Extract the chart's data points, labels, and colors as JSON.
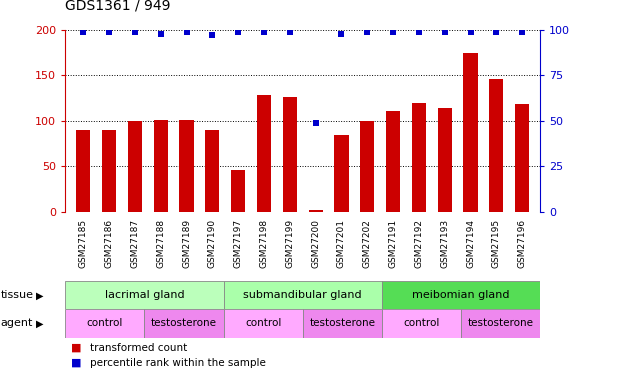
{
  "title": "GDS1361 / 949",
  "samples": [
    "GSM27185",
    "GSM27186",
    "GSM27187",
    "GSM27188",
    "GSM27189",
    "GSM27190",
    "GSM27197",
    "GSM27198",
    "GSM27199",
    "GSM27200",
    "GSM27201",
    "GSM27202",
    "GSM27191",
    "GSM27192",
    "GSM27193",
    "GSM27194",
    "GSM27195",
    "GSM27196"
  ],
  "red_values": [
    90,
    90,
    100,
    101,
    101,
    90,
    46,
    129,
    126,
    2,
    84,
    100,
    111,
    120,
    114,
    175,
    146,
    119
  ],
  "blue_values": [
    99,
    99,
    99,
    98,
    99,
    97,
    99,
    99,
    99,
    49,
    98,
    99,
    99,
    99,
    99,
    99,
    99,
    99
  ],
  "ylim_left": [
    0,
    200
  ],
  "ylim_right": [
    0,
    100
  ],
  "yticks_left": [
    0,
    50,
    100,
    150,
    200
  ],
  "yticks_right": [
    0,
    25,
    50,
    75,
    100
  ],
  "bar_color": "#CC0000",
  "dot_color": "#0000CC",
  "chart_bg": "#FFFFFF",
  "tissue_groups": [
    {
      "label": "lacrimal gland",
      "start": 0,
      "end": 6,
      "color": "#BBFFBB"
    },
    {
      "label": "submandibular gland",
      "start": 6,
      "end": 12,
      "color": "#AAFFAA"
    },
    {
      "label": "meibomian gland",
      "start": 12,
      "end": 18,
      "color": "#55DD55"
    }
  ],
  "agent_groups": [
    {
      "label": "control",
      "start": 0,
      "end": 3,
      "color": "#FFAAFF"
    },
    {
      "label": "testosterone",
      "start": 3,
      "end": 6,
      "color": "#EE88EE"
    },
    {
      "label": "control",
      "start": 6,
      "end": 9,
      "color": "#FFAAFF"
    },
    {
      "label": "testosterone",
      "start": 9,
      "end": 12,
      "color": "#EE88EE"
    },
    {
      "label": "control",
      "start": 12,
      "end": 15,
      "color": "#FFAAFF"
    },
    {
      "label": "testosterone",
      "start": 15,
      "end": 18,
      "color": "#EE88EE"
    }
  ],
  "xtick_bg": "#D0D0D0",
  "grid_linestyle": ":",
  "grid_color": "black",
  "grid_linewidth": 0.7
}
